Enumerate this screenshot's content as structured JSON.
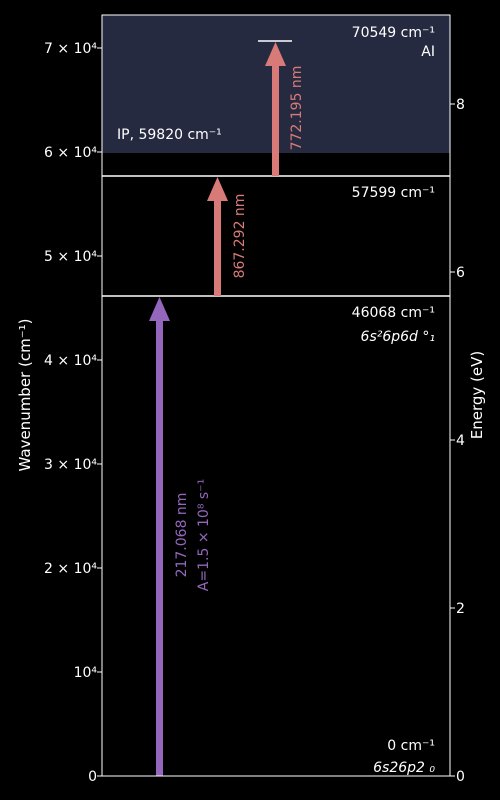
{
  "chart_data": {
    "type": "energy-level-diagram",
    "ylabel_left": "Wavenumber (cm⁻¹)",
    "ylabel_right": "Energy (eV)",
    "ylim_left": [
      0,
      73000
    ],
    "ylim_right_ev": [
      0,
      9.05
    ],
    "left_ticks": [
      {
        "value": 0,
        "label": "0"
      },
      {
        "value": 10000,
        "label": "10⁴"
      },
      {
        "value": 20000,
        "label": "2 × 10⁴"
      },
      {
        "value": 30000,
        "label": "3 × 10⁴"
      },
      {
        "value": 40000,
        "label": "4 × 10⁴"
      },
      {
        "value": 50000,
        "label": "5 × 10⁴"
      },
      {
        "value": 60000,
        "label": "6 × 10⁴"
      },
      {
        "value": 70000,
        "label": "7 × 10⁴"
      }
    ],
    "right_ticks": [
      {
        "value": 0,
        "label": "0"
      },
      {
        "value": 2,
        "label": "2"
      },
      {
        "value": 4,
        "label": "4"
      },
      {
        "value": 6,
        "label": "6"
      },
      {
        "value": 8,
        "label": "8"
      }
    ],
    "ionization": {
      "value": 59820,
      "label": "IP, 59820 cm⁻¹",
      "band_color": "#262a40"
    },
    "levels": [
      {
        "value": 0,
        "energy_label": "0 cm⁻¹",
        "config": "6s26p2 ₀"
      },
      {
        "value": 46068,
        "energy_label": "46068 cm⁻¹",
        "config": "6s²6p6d °₁"
      },
      {
        "value": 57599,
        "energy_label": "57599 cm⁻¹",
        "config": ""
      },
      {
        "value": 70549,
        "energy_label": "70549 cm⁻¹",
        "config": "AI"
      }
    ],
    "transitions": [
      {
        "from": 0,
        "to": 46068,
        "wavelength_label": "217.068 nm",
        "extra_label": "A=1.5 × 10⁸ s⁻¹",
        "color": "#9467bd"
      },
      {
        "from": 46068,
        "to": 57599,
        "wavelength_label": "867.292 nm",
        "extra_label": "",
        "color": "#d87a78"
      },
      {
        "from": 57599,
        "to": 70549,
        "wavelength_label": "772.195 nm",
        "extra_label": "",
        "color": "#d87a78"
      }
    ]
  }
}
